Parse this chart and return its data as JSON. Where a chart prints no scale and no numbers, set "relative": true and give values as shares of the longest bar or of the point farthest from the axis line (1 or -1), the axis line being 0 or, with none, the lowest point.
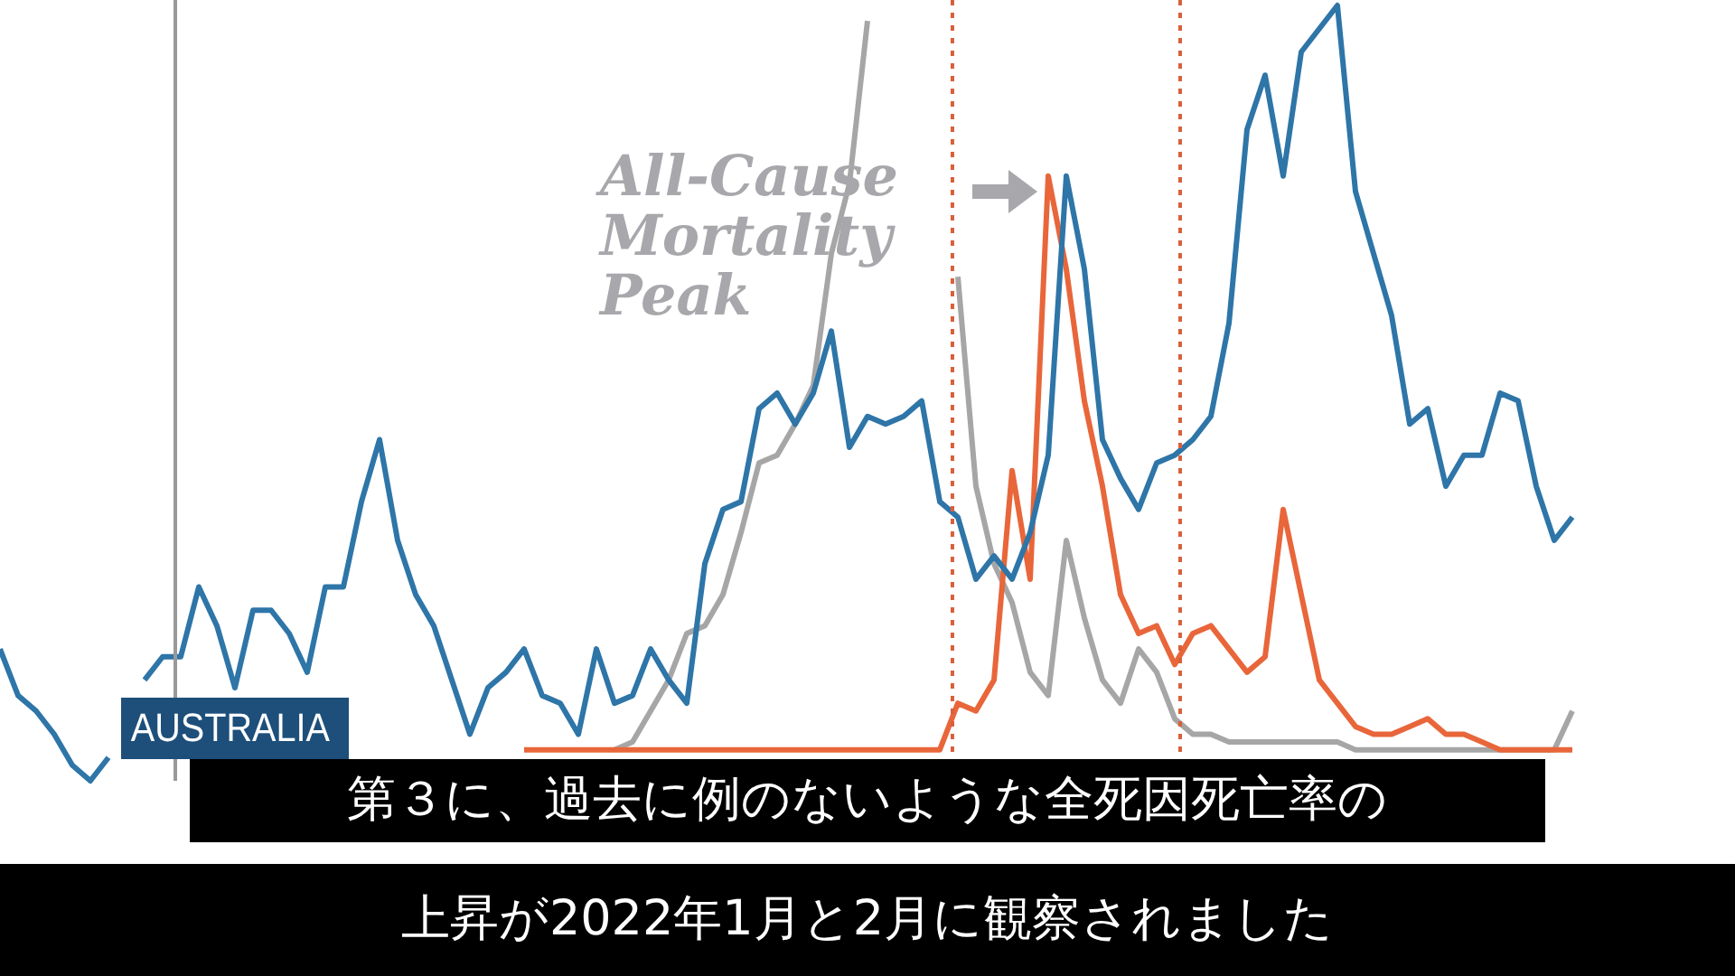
{
  "chart_data": {
    "type": "line",
    "title": "AUSTRALIA",
    "relative": true,
    "legend": false,
    "tick_labels": false,
    "marker": "none",
    "categories": [
      null,
      null,
      null,
      null,
      null,
      null,
      null,
      null,
      null,
      null,
      null,
      null,
      null,
      null,
      null,
      null,
      null,
      null,
      null,
      null,
      null,
      null,
      null,
      null,
      null,
      null,
      null,
      null,
      null,
      null,
      null,
      null,
      null,
      null,
      null,
      null,
      null,
      null,
      null,
      null,
      null,
      null,
      null,
      null,
      null,
      null,
      null,
      null,
      null,
      null,
      null,
      null,
      null,
      null,
      null,
      null,
      null,
      null,
      null,
      null,
      null,
      null,
      null,
      null,
      null,
      null,
      null,
      null,
      null,
      null,
      null,
      null,
      null,
      null,
      null,
      null,
      null,
      null,
      null,
      null,
      null,
      null,
      null,
      null,
      null,
      null,
      null,
      null
    ],
    "series": [
      {
        "color": "#2e75a8",
        "values": [
          0.17,
          0.11,
          0.09,
          0.06,
          0.02,
          0,
          0.03,
          null,
          0.13,
          0.16,
          0.16,
          0.25,
          0.2,
          0.12,
          0.22,
          0.22,
          0.19,
          0.14,
          0.25,
          0.25,
          0.36,
          0.44,
          0.31,
          0.24,
          0.2,
          0.13,
          0.06,
          0.12,
          0.14,
          0.17,
          0.11,
          0.1,
          0.06,
          0.17,
          0.1,
          0.11,
          0.17,
          0.13,
          0.1,
          0.28,
          0.35,
          0.36,
          0.48,
          0.5,
          0.46,
          0.5,
          0.58,
          0.43,
          0.47,
          0.46,
          0.47,
          0.49,
          0.36,
          0.34,
          0.26,
          0.29,
          0.26,
          0.32,
          0.42,
          0.78,
          0.66,
          0.44,
          0.39,
          0.35,
          0.41,
          0.42,
          0.44,
          0.47,
          0.59,
          0.84,
          0.91,
          0.78,
          0.94,
          0.97,
          1,
          0.76,
          0.68,
          0.6,
          0.46,
          0.48,
          0.38,
          0.42,
          0.42,
          0.5,
          0.49,
          0.38,
          0.31,
          0.34
        ]
      },
      {
        "color": "#e8663a",
        "values": [
          null,
          null,
          null,
          null,
          null,
          null,
          null,
          null,
          null,
          null,
          null,
          null,
          null,
          null,
          null,
          null,
          null,
          null,
          null,
          null,
          null,
          null,
          null,
          null,
          null,
          null,
          null,
          null,
          null,
          0.04,
          0.04,
          0.04,
          0.04,
          0.04,
          0.04,
          0.04,
          0.04,
          0.04,
          0.04,
          0.04,
          0.04,
          0.04,
          0.04,
          0.04,
          0.04,
          0.04,
          0.04,
          0.04,
          0.04,
          0.04,
          0.04,
          0.04,
          0.04,
          0.1,
          0.09,
          0.13,
          0.4,
          0.26,
          0.78,
          0.66,
          0.49,
          0.38,
          0.24,
          0.19,
          0.2,
          0.15,
          0.19,
          0.2,
          0.17,
          0.14,
          0.16,
          0.35,
          0.24,
          0.13,
          0.1,
          0.07,
          0.06,
          0.06,
          0.07,
          0.08,
          0.06,
          0.06,
          0.05,
          0.04,
          0.04,
          0.04,
          0.04,
          0.04
        ]
      },
      {
        "color": "#a6a6a6",
        "values": [
          null,
          null,
          null,
          null,
          null,
          null,
          null,
          null,
          null,
          null,
          null,
          null,
          null,
          null,
          null,
          null,
          null,
          null,
          null,
          null,
          null,
          null,
          null,
          null,
          null,
          null,
          null,
          null,
          null,
          null,
          null,
          null,
          null,
          null,
          0.04,
          0.05,
          0.09,
          0.13,
          0.19,
          0.2,
          0.24,
          0.32,
          0.41,
          0.42,
          0.46,
          0.51,
          0.68,
          0.77,
          0.98,
          null,
          null,
          null,
          null,
          0.65,
          0.38,
          0.28,
          0.23,
          0.14,
          0.11,
          0.31,
          0.21,
          0.13,
          0.1,
          0.17,
          0.14,
          0.08,
          0.06,
          0.06,
          0.05,
          0.05,
          0.05,
          0.05,
          0.05,
          0.05,
          0.05,
          0.04,
          0.04,
          0.04,
          0.04,
          0.04,
          0.04,
          0.04,
          0.04,
          0.04,
          0.04,
          0.04,
          0.04,
          0.09
        ]
      }
    ],
    "annotations": [
      "All-Cause Mortality Peak",
      "第３に、過去に例のないような全死因死亡率の",
      "上昇が2022年1月と2月に観察されました"
    ]
  }
}
